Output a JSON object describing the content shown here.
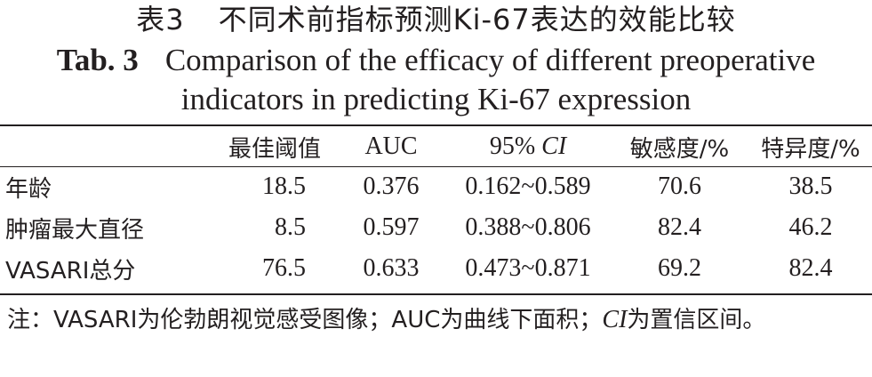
{
  "title_cn": {
    "table_no": "表3",
    "text": "不同术前指标预测Ki-67表达的效能比较"
  },
  "title_en": {
    "table_no": "Tab. 3",
    "line1": "Comparison of the efficacy of different preoperative",
    "line2": "indicators in predicting Ki-67 expression"
  },
  "table": {
    "headers": {
      "label": "",
      "threshold": "最佳阈值",
      "auc": "AUC",
      "ci_prefix": "95%",
      "ci_italic": "CI",
      "sensitivity": "敏感度/%",
      "specificity": "特异度/%"
    },
    "rows": [
      {
        "label": "年龄",
        "threshold": "18.5",
        "auc": "0.376",
        "ci": "0.162~0.589",
        "sensitivity": "70.6",
        "specificity": "38.5"
      },
      {
        "label": "肿瘤最大直径",
        "threshold": "8.5",
        "auc": "0.597",
        "ci": "0.388~0.806",
        "sensitivity": "82.4",
        "specificity": "46.2"
      },
      {
        "label": "VASARI总分",
        "threshold": "76.5",
        "auc": "0.633",
        "ci": "0.473~0.871",
        "sensitivity": "69.2",
        "specificity": "82.4"
      }
    ]
  },
  "note": {
    "part1": "注：VASARI为伦勃朗视觉感受图像；AUC为曲线下面积；",
    "ci_italic": "CI",
    "part2": "为置信区间。"
  }
}
